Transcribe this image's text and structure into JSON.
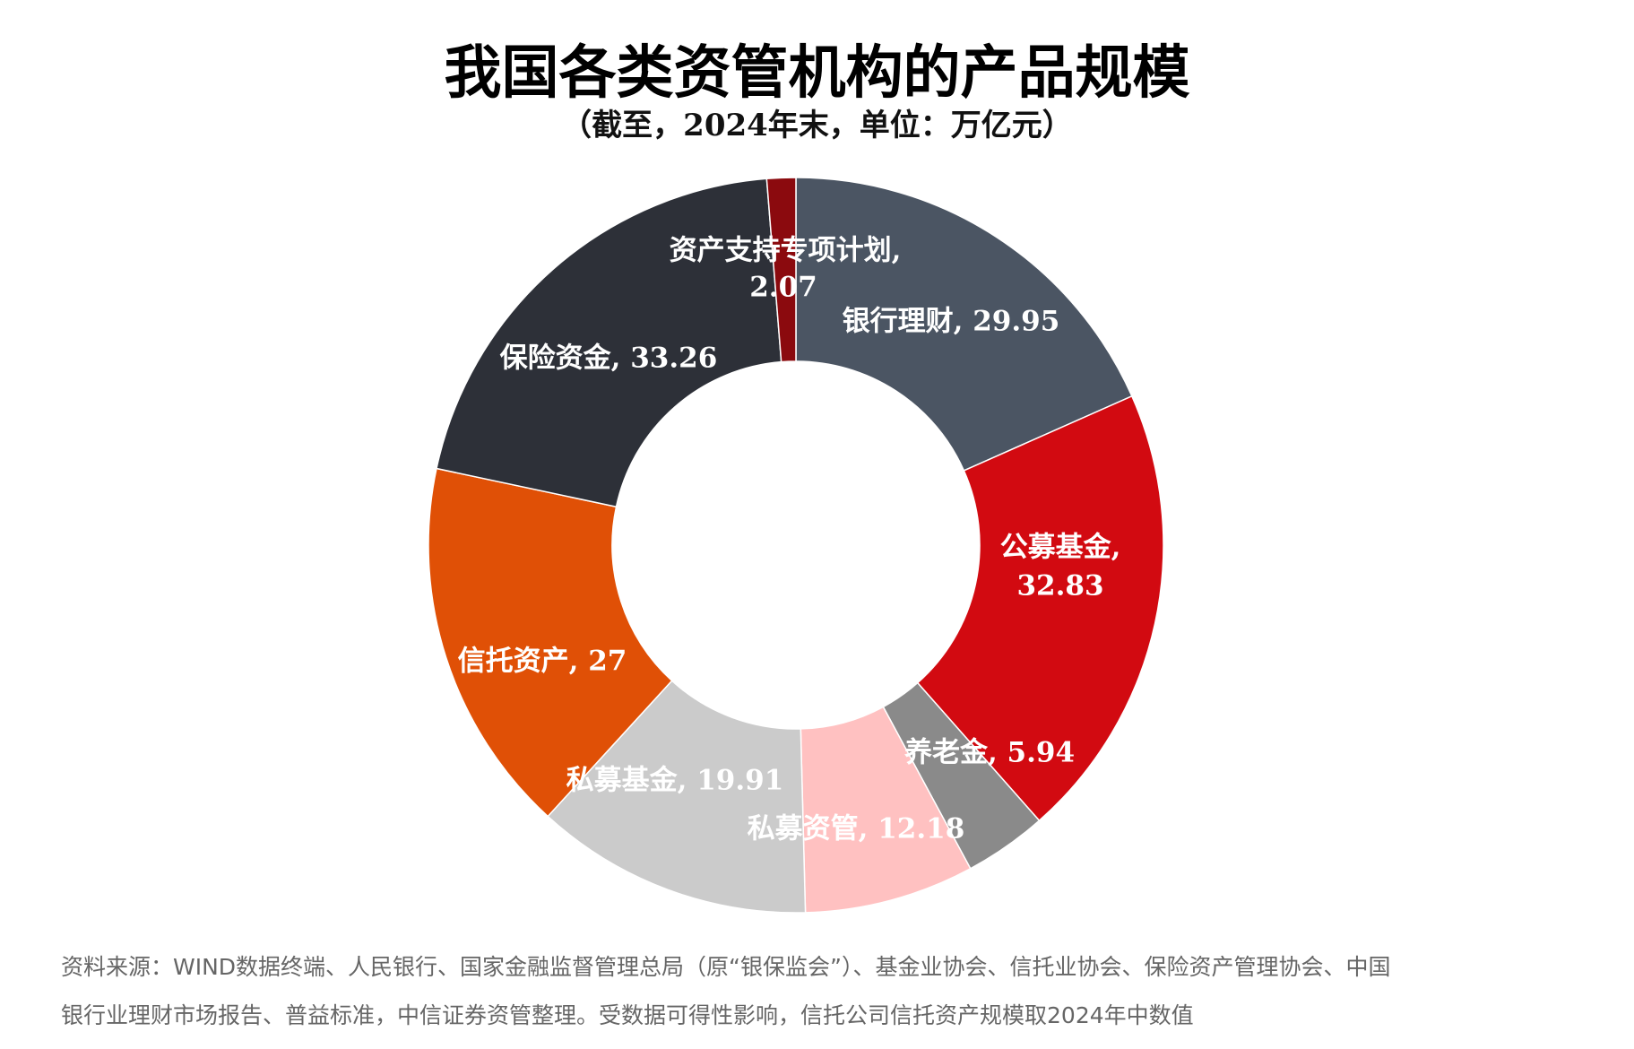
{
  "title": "我国各类资管机构的产品规模",
  "subtitle": "（截至，2024年末，单位：万亿元）",
  "chart_data": {
    "type": "pie",
    "donut": true,
    "title": "我国各类资管机构的产品规模",
    "subtitle": "（截至，2024年末，单位：万亿元）",
    "unit": "万亿元",
    "direction": "clockwise from top",
    "slices": [
      {
        "name": "银行理财",
        "value": 29.95,
        "label": "银行理财, 29.95",
        "color": "#4b5563"
      },
      {
        "name": "公募基金",
        "value": 32.83,
        "label_line1": "公募基金,",
        "label_line2": "32.83",
        "color": "#d20a11"
      },
      {
        "name": "养老金",
        "value": 5.94,
        "label": "养老金, 5.94",
        "color": "#8a8a8a"
      },
      {
        "name": "私募资管",
        "value": 12.18,
        "label": "私募资管, 12.18",
        "color": "#ffc1c1"
      },
      {
        "name": "私募基金",
        "value": 19.91,
        "label": "私募基金, 19.91",
        "color": "#cbcbcb"
      },
      {
        "name": "信托资产",
        "value": 27,
        "label": "信托资产, 27",
        "color": "#e05006"
      },
      {
        "name": "保险资金",
        "value": 33.26,
        "label": "保险资金, 33.26",
        "color": "#2d3038"
      },
      {
        "name": "资产支持专项计划",
        "value": 2.07,
        "label_line1": "资产支持专项计划,",
        "label_line2": "2.07",
        "color": "#8b0a0e"
      }
    ]
  },
  "source": {
    "line1": "资料来源：WIND数据终端、人民银行、国家金融监督管理总局（原“银保监会”）、基金业协会、信托业协会、保险资产管理协会、中国",
    "line2": "银行业理财市场报告、普益标准，中信证券资管整理。受数据可得性影响，信托公司信托资产规模取2024年中数值"
  }
}
